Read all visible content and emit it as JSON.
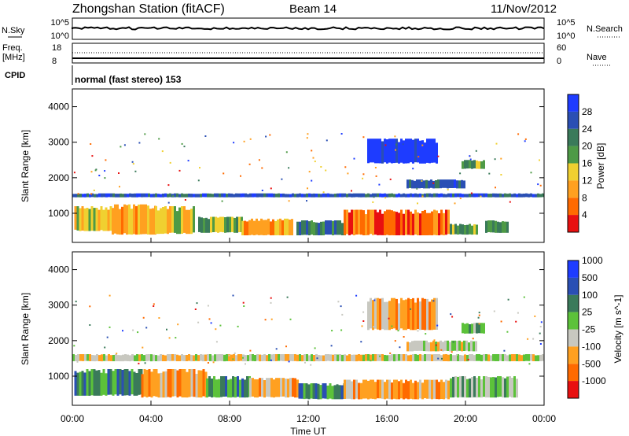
{
  "header": {
    "title": "Zhongshan Station (fitACF)",
    "beam": "Beam 14",
    "date": "11/Nov/2012"
  },
  "summary": {
    "nsky_label": "N.Sky",
    "nsky_ticks": [
      "10^5",
      "10^0"
    ],
    "nsearch_label": "N.Search",
    "nsearch_ticks": [
      "10^5",
      "10^0"
    ],
    "freq_label": "Freq.",
    "freq_unit": "[MHz]",
    "freq_ticks": [
      "18",
      "8"
    ],
    "nave_label": "Nave",
    "nave_ticks": [
      "60",
      "0"
    ],
    "cpid_label": "CPID",
    "cpid_value": "normal (fast stereo) 153"
  },
  "axes": {
    "ylabel": "Slant Range [km]",
    "yticks": [
      1000,
      2000,
      3000,
      4000
    ],
    "ylim": [
      180,
      4500
    ],
    "xlabel": "Time UT",
    "xticks": [
      "00:00",
      "04:00",
      "08:00",
      "12:00",
      "16:00",
      "20:00",
      "00:00"
    ],
    "xlim_hours": [
      0,
      24
    ]
  },
  "colors": {
    "power": [
      "#1e3cff",
      "#2a4fb4",
      "#3a7a5a",
      "#4e9a46",
      "#f0d030",
      "#ffa020",
      "#ff6a00",
      "#e81010"
    ],
    "velocity": [
      "#1e3cff",
      "#2a4fb4",
      "#3a7a5a",
      "#5cc23a",
      "#c8c8c0",
      "#ffa020",
      "#ff6a00",
      "#e81010"
    ]
  },
  "chart_data": [
    {
      "type": "heatmap",
      "name": "power",
      "colorbar_label": "Power [dB]",
      "colorbar_ticks": [
        "28",
        "24",
        "20",
        "16",
        "12",
        "8",
        "4"
      ],
      "blobs": [
        {
          "t0": 0.1,
          "t1": 2.0,
          "r0": 500,
          "r1": 1200,
          "level": 4
        },
        {
          "t0": 2.0,
          "t1": 4.2,
          "r0": 400,
          "r1": 1250,
          "level": 5
        },
        {
          "t0": 4.2,
          "t1": 6.2,
          "r0": 420,
          "r1": 1200,
          "level": 4
        },
        {
          "t0": 6.4,
          "t1": 8.6,
          "r0": 450,
          "r1": 900,
          "level": 3
        },
        {
          "t0": 8.6,
          "t1": 11.2,
          "r0": 380,
          "r1": 850,
          "level": 5
        },
        {
          "t0": 11.4,
          "t1": 13.8,
          "r0": 380,
          "r1": 800,
          "level": 2
        },
        {
          "t0": 13.8,
          "t1": 19.2,
          "r0": 380,
          "r1": 1100,
          "level": 6
        },
        {
          "t0": 19.2,
          "t1": 20.6,
          "r0": 400,
          "r1": 700,
          "level": 3
        },
        {
          "t0": 21.0,
          "t1": 22.2,
          "r0": 450,
          "r1": 800,
          "level": 3
        },
        {
          "t0": 0.0,
          "t1": 24.0,
          "r0": 1450,
          "r1": 1560,
          "level": 1
        },
        {
          "t0": 15.0,
          "t1": 18.6,
          "r0": 2400,
          "r1": 3100,
          "level": 0
        },
        {
          "t0": 17.0,
          "t1": 20.0,
          "r0": 1700,
          "r1": 1950,
          "level": 1
        },
        {
          "t0": 19.8,
          "t1": 21.0,
          "r0": 2250,
          "r1": 2500,
          "level": 3
        }
      ]
    },
    {
      "type": "heatmap",
      "name": "velocity",
      "colorbar_label": "Velocity [m s^-1]",
      "colorbar_ticks": [
        "1000",
        "500",
        "100",
        "25",
        "-25",
        "-100",
        "-500",
        "-1000"
      ],
      "blobs": [
        {
          "t0": 0.1,
          "t1": 3.5,
          "r0": 450,
          "r1": 1200,
          "level": 2
        },
        {
          "t0": 3.5,
          "t1": 6.8,
          "r0": 400,
          "r1": 1200,
          "level": 5
        },
        {
          "t0": 6.8,
          "t1": 9.0,
          "r0": 400,
          "r1": 1000,
          "level": 2
        },
        {
          "t0": 9.0,
          "t1": 11.5,
          "r0": 400,
          "r1": 950,
          "level": 5
        },
        {
          "t0": 11.5,
          "t1": 13.8,
          "r0": 350,
          "r1": 800,
          "level": 2
        },
        {
          "t0": 13.8,
          "t1": 19.2,
          "r0": 350,
          "r1": 900,
          "level": 5
        },
        {
          "t0": 19.2,
          "t1": 22.6,
          "r0": 400,
          "r1": 1000,
          "level": 3
        },
        {
          "t0": 0.0,
          "t1": 24.0,
          "r0": 1420,
          "r1": 1620,
          "level": 4
        },
        {
          "t0": 15.0,
          "t1": 18.6,
          "r0": 2300,
          "r1": 3200,
          "level": 5
        },
        {
          "t0": 17.0,
          "t1": 20.5,
          "r0": 1700,
          "r1": 2000,
          "level": 4
        },
        {
          "t0": 19.8,
          "t1": 21.0,
          "r0": 2200,
          "r1": 2500,
          "level": 3
        }
      ]
    }
  ]
}
